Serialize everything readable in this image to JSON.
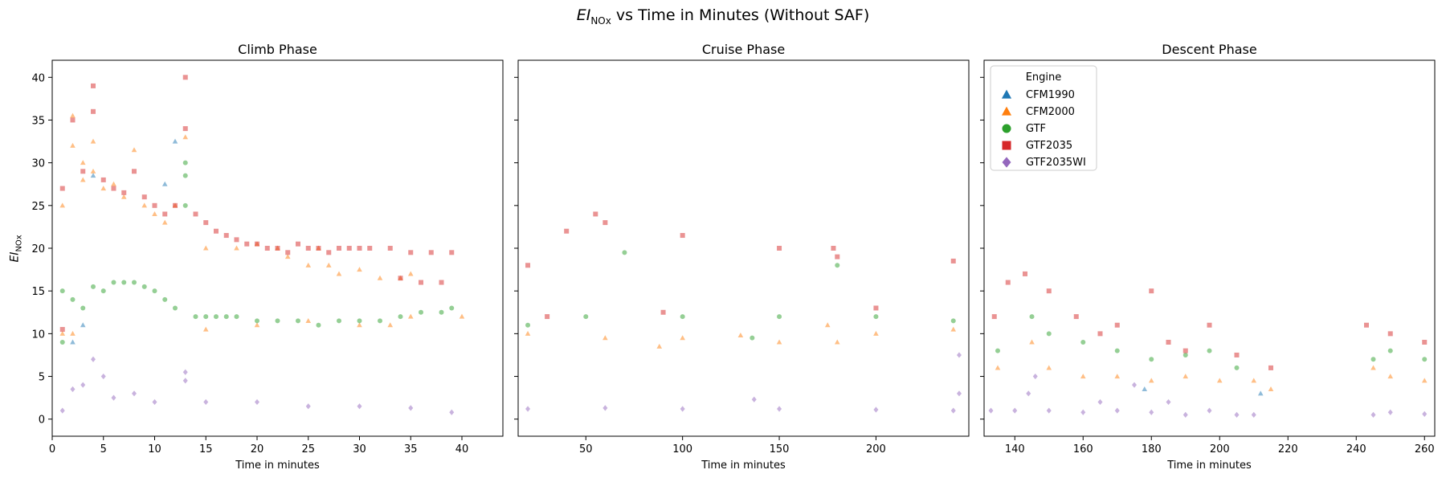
{
  "figure": {
    "title_math": "EI",
    "title_sub": "NOx",
    "title_rest": " vs Time in Minutes (Without SAF)"
  },
  "y_axis": {
    "label_main": "EI",
    "label_sub": "NOx",
    "range": [
      -2,
      42
    ],
    "ticks": [
      0,
      5,
      10,
      15,
      20,
      25,
      30,
      35,
      40
    ],
    "tick_labels": [
      "0",
      "5",
      "10",
      "15",
      "20",
      "25",
      "30",
      "35",
      "40"
    ]
  },
  "engines": [
    {
      "name": "CFM1990",
      "marker": "triangle",
      "color": "#1f77b4"
    },
    {
      "name": "CFM2000",
      "marker": "triangle",
      "color": "#ff7f0e"
    },
    {
      "name": "GTF",
      "marker": "circle",
      "color": "#2ca02c"
    },
    {
      "name": "GTF2035",
      "marker": "square",
      "color": "#d62728"
    },
    {
      "name": "GTF2035WI",
      "marker": "diamond",
      "color": "#9467bd"
    }
  ],
  "legend": {
    "title": "Engine",
    "placement": "upper-left of Descent Phase panel"
  },
  "chart_data": [
    {
      "type": "scatter",
      "title": "Climb Phase",
      "xlabel": "Time in minutes",
      "xlim": [
        0,
        44
      ],
      "xticks": [
        0,
        5,
        10,
        15,
        20,
        25,
        30,
        35,
        40
      ],
      "xtick_labels": [
        "0",
        "5",
        "10",
        "15",
        "20",
        "25",
        "30",
        "35",
        "40"
      ],
      "series": [
        {
          "engine": "CFM2000",
          "points": [
            [
              1,
              25
            ],
            [
              2,
              35.5
            ],
            [
              2,
              32
            ],
            [
              3,
              30
            ],
            [
              3,
              28
            ],
            [
              4,
              32.5
            ],
            [
              4,
              29
            ],
            [
              5,
              27
            ],
            [
              6,
              27.5
            ],
            [
              7,
              26
            ],
            [
              8,
              31.5
            ],
            [
              9,
              25
            ],
            [
              10,
              24
            ],
            [
              11,
              23
            ],
            [
              12,
              25
            ],
            [
              13,
              33
            ],
            [
              15,
              20
            ],
            [
              18,
              20
            ],
            [
              20,
              20.5
            ],
            [
              22,
              20
            ],
            [
              23,
              19
            ],
            [
              25,
              18
            ],
            [
              26,
              20
            ],
            [
              27,
              18
            ],
            [
              28,
              17
            ],
            [
              30,
              17.5
            ],
            [
              32,
              16.5
            ],
            [
              34,
              16.5
            ],
            [
              35,
              17
            ],
            [
              1,
              10
            ],
            [
              2,
              10
            ],
            [
              15,
              10.5
            ],
            [
              20,
              11
            ],
            [
              25,
              11.5
            ],
            [
              30,
              11
            ],
            [
              33,
              11
            ],
            [
              35,
              12
            ],
            [
              40,
              12
            ]
          ]
        },
        {
          "engine": "CFM1990",
          "points": [
            [
              2,
              9
            ],
            [
              3,
              11
            ],
            [
              4,
              28.5
            ],
            [
              11,
              27.5
            ],
            [
              12,
              32.5
            ]
          ]
        },
        {
          "engine": "GTF",
          "points": [
            [
              1,
              9
            ],
            [
              1,
              15
            ],
            [
              2,
              14
            ],
            [
              3,
              13
            ],
            [
              4,
              15.5
            ],
            [
              5,
              15
            ],
            [
              6,
              16
            ],
            [
              7,
              16
            ],
            [
              8,
              16
            ],
            [
              9,
              15.5
            ],
            [
              10,
              15
            ],
            [
              11,
              14
            ],
            [
              12,
              13
            ],
            [
              13,
              28.5
            ],
            [
              13,
              30
            ],
            [
              13,
              25
            ],
            [
              14,
              12
            ],
            [
              15,
              12
            ],
            [
              16,
              12
            ],
            [
              17,
              12
            ],
            [
              18,
              12
            ],
            [
              20,
              11.5
            ],
            [
              22,
              11.5
            ],
            [
              24,
              11.5
            ],
            [
              26,
              11
            ],
            [
              28,
              11.5
            ],
            [
              30,
              11.5
            ],
            [
              32,
              11.5
            ],
            [
              34,
              12
            ],
            [
              36,
              12.5
            ],
            [
              38,
              12.5
            ],
            [
              39,
              13
            ]
          ]
        },
        {
          "engine": "GTF2035",
          "points": [
            [
              1,
              10.5
            ],
            [
              1,
              27
            ],
            [
              2,
              35
            ],
            [
              3,
              29
            ],
            [
              4,
              39
            ],
            [
              4,
              36
            ],
            [
              5,
              28
            ],
            [
              6,
              27
            ],
            [
              7,
              26.5
            ],
            [
              8,
              29
            ],
            [
              9,
              26
            ],
            [
              10,
              25
            ],
            [
              11,
              24
            ],
            [
              12,
              25
            ],
            [
              13,
              40
            ],
            [
              13,
              34
            ],
            [
              14,
              24
            ],
            [
              15,
              23
            ],
            [
              16,
              22
            ],
            [
              17,
              21.5
            ],
            [
              18,
              21
            ],
            [
              19,
              20.5
            ],
            [
              20,
              20.5
            ],
            [
              21,
              20
            ],
            [
              22,
              20
            ],
            [
              23,
              19.5
            ],
            [
              24,
              20.5
            ],
            [
              25,
              20
            ],
            [
              26,
              20
            ],
            [
              27,
              19.5
            ],
            [
              28,
              20
            ],
            [
              29,
              20
            ],
            [
              30,
              20
            ],
            [
              31,
              20
            ],
            [
              33,
              20
            ],
            [
              35,
              19.5
            ],
            [
              37,
              19.5
            ],
            [
              39,
              19.5
            ],
            [
              34,
              16.5
            ],
            [
              36,
              16
            ],
            [
              38,
              16
            ]
          ]
        },
        {
          "engine": "GTF2035WI",
          "points": [
            [
              1,
              1
            ],
            [
              2,
              3.5
            ],
            [
              3,
              4
            ],
            [
              4,
              7
            ],
            [
              5,
              5
            ],
            [
              6,
              2.5
            ],
            [
              8,
              3
            ],
            [
              10,
              2
            ],
            [
              13,
              5.5
            ],
            [
              13,
              4.5
            ],
            [
              15,
              2
            ],
            [
              20,
              2
            ],
            [
              25,
              1.5
            ],
            [
              30,
              1.5
            ],
            [
              35,
              1.3
            ],
            [
              39,
              0.8
            ]
          ]
        }
      ]
    },
    {
      "type": "scatter",
      "title": "Cruise Phase",
      "xlabel": "Time in minutes",
      "xlim": [
        15,
        248
      ],
      "xticks": [
        50,
        100,
        150,
        200
      ],
      "xtick_labels": [
        "50",
        "100",
        "150",
        "200"
      ],
      "series": [
        {
          "engine": "CFM2000",
          "points": [
            [
              20,
              10
            ],
            [
              60,
              9.5
            ],
            [
              100,
              9.5
            ],
            [
              150,
              9
            ],
            [
              180,
              9
            ],
            [
              200,
              10
            ],
            [
              240,
              10.5
            ],
            [
              88,
              8.5
            ],
            [
              130,
              9.8
            ],
            [
              175,
              11
            ]
          ]
        },
        {
          "engine": "GTF",
          "points": [
            [
              20,
              11
            ],
            [
              50,
              12
            ],
            [
              100,
              12
            ],
            [
              136,
              9.5
            ],
            [
              150,
              12
            ],
            [
              200,
              12
            ],
            [
              240,
              11.5
            ],
            [
              70,
              19.5
            ],
            [
              180,
              18
            ]
          ]
        },
        {
          "engine": "GTF2035",
          "points": [
            [
              20,
              18
            ],
            [
              40,
              22
            ],
            [
              55,
              24
            ],
            [
              60,
              23
            ],
            [
              100,
              21.5
            ],
            [
              150,
              20
            ],
            [
              180,
              19
            ],
            [
              240,
              18.5
            ],
            [
              178,
              20
            ],
            [
              30,
              12
            ],
            [
              90,
              12.5
            ],
            [
              200,
              13
            ]
          ]
        },
        {
          "engine": "GTF2035WI",
          "points": [
            [
              20,
              1.2
            ],
            [
              60,
              1.3
            ],
            [
              100,
              1.2
            ],
            [
              137,
              2.3
            ],
            [
              150,
              1.2
            ],
            [
              200,
              1.1
            ],
            [
              240,
              1.0
            ],
            [
              243,
              7.5
            ],
            [
              243,
              3
            ]
          ]
        }
      ]
    },
    {
      "type": "scatter",
      "title": "Descent Phase",
      "xlabel": "Time in minutes",
      "xlim": [
        131,
        263
      ],
      "xticks": [
        140,
        160,
        180,
        200,
        220,
        240,
        260
      ],
      "xtick_labels": [
        "140",
        "160",
        "180",
        "200",
        "220",
        "240",
        "260"
      ],
      "series": [
        {
          "engine": "CFM1990",
          "points": [
            [
              178,
              3.5
            ],
            [
              212,
              3
            ]
          ]
        },
        {
          "engine": "CFM2000",
          "points": [
            [
              135,
              6
            ],
            [
              145,
              9
            ],
            [
              150,
              6
            ],
            [
              160,
              5
            ],
            [
              170,
              5
            ],
            [
              180,
              4.5
            ],
            [
              190,
              5
            ],
            [
              200,
              4.5
            ],
            [
              210,
              4.5
            ],
            [
              215,
              3.5
            ],
            [
              245,
              6
            ],
            [
              250,
              5
            ],
            [
              260,
              4.5
            ]
          ]
        },
        {
          "engine": "GTF",
          "points": [
            [
              135,
              8
            ],
            [
              145,
              12
            ],
            [
              150,
              10
            ],
            [
              160,
              9
            ],
            [
              170,
              8
            ],
            [
              180,
              7
            ],
            [
              190,
              7.5
            ],
            [
              197,
              8
            ],
            [
              205,
              6
            ],
            [
              245,
              7
            ],
            [
              250,
              8
            ],
            [
              260,
              7
            ]
          ]
        },
        {
          "engine": "GTF2035",
          "points": [
            [
              134,
              12
            ],
            [
              138,
              16
            ],
            [
              143,
              17
            ],
            [
              150,
              15
            ],
            [
              158,
              12
            ],
            [
              165,
              10
            ],
            [
              170,
              11
            ],
            [
              180,
              15
            ],
            [
              185,
              9
            ],
            [
              190,
              8
            ],
            [
              197,
              11
            ],
            [
              205,
              7.5
            ],
            [
              215,
              6
            ],
            [
              243,
              11
            ],
            [
              250,
              10
            ],
            [
              260,
              9
            ]
          ]
        },
        {
          "engine": "GTF2035WI",
          "points": [
            [
              133,
              1
            ],
            [
              140,
              1
            ],
            [
              144,
              3
            ],
            [
              146,
              5
            ],
            [
              150,
              1
            ],
            [
              160,
              0.8
            ],
            [
              165,
              2
            ],
            [
              170,
              1
            ],
            [
              175,
              4
            ],
            [
              180,
              0.8
            ],
            [
              185,
              2
            ],
            [
              190,
              0.5
            ],
            [
              197,
              1
            ],
            [
              205,
              0.5
            ],
            [
              210,
              0.5
            ],
            [
              245,
              0.5
            ],
            [
              250,
              0.8
            ],
            [
              260,
              0.6
            ]
          ]
        }
      ]
    }
  ]
}
